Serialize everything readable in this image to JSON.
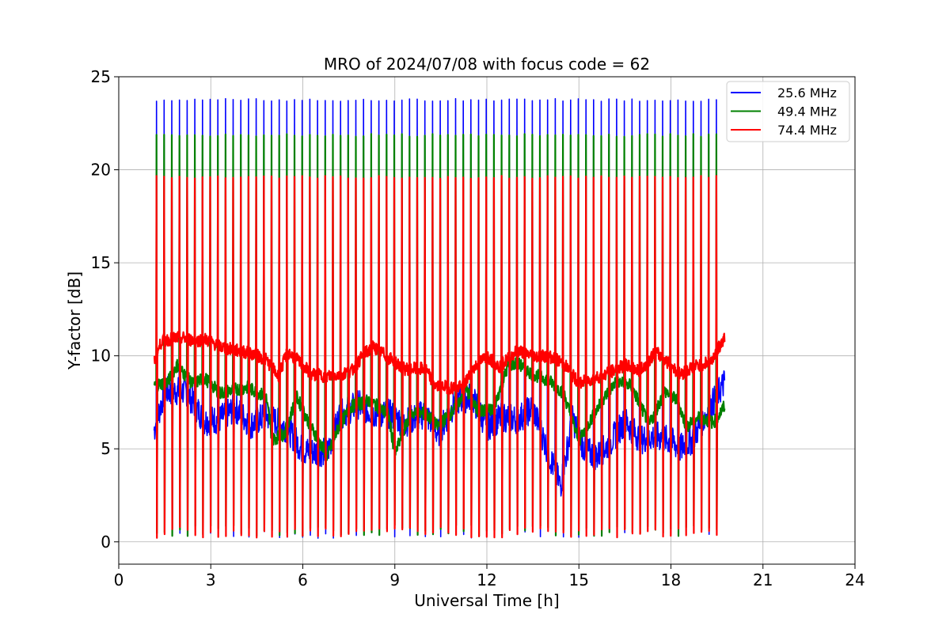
{
  "chart_data": {
    "type": "line",
    "title": "MRO of 2024/07/08 with focus code = 62",
    "xlabel": "Universal Time [h]",
    "ylabel": "Y-factor [dB]",
    "xlim": [
      0,
      24
    ],
    "ylim": [
      -1.2,
      25
    ],
    "xticks": [
      0,
      3,
      6,
      9,
      12,
      15,
      18,
      21,
      24
    ],
    "yticks": [
      0,
      5,
      10,
      15,
      20,
      25
    ],
    "grid": true,
    "legend_position": "top-right",
    "x_start": 1.15,
    "x_end": 19.75,
    "spike_start": 1.22,
    "spike_end": 19.55,
    "spike_period": 0.25,
    "series": [
      {
        "name": "25.6 MHz",
        "color": "#0000ff",
        "spike_peak": 23.75,
        "spike_low": 0.2,
        "baseline": [
          [
            1.15,
            6.0
          ],
          [
            1.5,
            8.1
          ],
          [
            2.2,
            8.1
          ],
          [
            2.8,
            6.5
          ],
          [
            3.3,
            6.6
          ],
          [
            3.8,
            7.2
          ],
          [
            4.3,
            6.3
          ],
          [
            4.8,
            6.8
          ],
          [
            5.5,
            6.1
          ],
          [
            6.0,
            4.9
          ],
          [
            6.8,
            4.8
          ],
          [
            7.2,
            6.8
          ],
          [
            7.8,
            7.4
          ],
          [
            8.3,
            6.9
          ],
          [
            8.8,
            6.9
          ],
          [
            9.3,
            6.4
          ],
          [
            10.0,
            6.9
          ],
          [
            10.4,
            5.8
          ],
          [
            11.0,
            7.6
          ],
          [
            11.5,
            7.8
          ],
          [
            12.0,
            6.2
          ],
          [
            12.5,
            6.7
          ],
          [
            13.0,
            6.6
          ],
          [
            13.5,
            7.2
          ],
          [
            14.0,
            4.8
          ],
          [
            14.4,
            3.0
          ],
          [
            14.8,
            6.6
          ],
          [
            15.2,
            4.9
          ],
          [
            15.6,
            4.6
          ],
          [
            16.0,
            5.3
          ],
          [
            16.5,
            6.5
          ],
          [
            17.0,
            5.5
          ],
          [
            17.5,
            5.7
          ],
          [
            18.0,
            5.4
          ],
          [
            18.3,
            5.0
          ],
          [
            18.7,
            5.5
          ],
          [
            19.2,
            7.0
          ],
          [
            19.75,
            8.6
          ]
        ]
      },
      {
        "name": "49.4 MHz",
        "color": "#008000",
        "spike_peak": 21.85,
        "spike_low": 0.3,
        "baseline": [
          [
            1.15,
            8.4
          ],
          [
            1.6,
            8.6
          ],
          [
            1.9,
            9.5
          ],
          [
            2.4,
            8.5
          ],
          [
            2.8,
            8.8
          ],
          [
            3.3,
            8.0
          ],
          [
            3.8,
            8.2
          ],
          [
            4.2,
            8.3
          ],
          [
            4.8,
            7.8
          ],
          [
            5.0,
            5.5
          ],
          [
            5.4,
            5.8
          ],
          [
            5.8,
            7.8
          ],
          [
            6.2,
            6.4
          ],
          [
            6.8,
            4.6
          ],
          [
            7.2,
            6.3
          ],
          [
            7.6,
            7.3
          ],
          [
            8.2,
            7.6
          ],
          [
            8.8,
            6.8
          ],
          [
            9.0,
            4.7
          ],
          [
            9.5,
            6.9
          ],
          [
            10.0,
            6.9
          ],
          [
            10.4,
            6.2
          ],
          [
            11.0,
            7.2
          ],
          [
            11.3,
            8.3
          ],
          [
            11.7,
            7.0
          ],
          [
            12.2,
            7.1
          ],
          [
            12.7,
            9.5
          ],
          [
            13.0,
            9.6
          ],
          [
            13.5,
            9.0
          ],
          [
            14.0,
            8.7
          ],
          [
            14.5,
            8.0
          ],
          [
            15.0,
            5.4
          ],
          [
            15.4,
            6.6
          ],
          [
            15.8,
            7.7
          ],
          [
            16.2,
            8.6
          ],
          [
            16.7,
            8.4
          ],
          [
            17.3,
            6.3
          ],
          [
            17.8,
            8.1
          ],
          [
            18.2,
            7.6
          ],
          [
            18.5,
            6.2
          ],
          [
            18.9,
            6.7
          ],
          [
            19.4,
            6.4
          ],
          [
            19.75,
            7.3
          ]
        ]
      },
      {
        "name": "74.4 MHz",
        "color": "#ff0000",
        "spike_peak": 19.6,
        "spike_low": 0.2,
        "baseline": [
          [
            1.15,
            9.7
          ],
          [
            1.4,
            10.8
          ],
          [
            2.0,
            11.0
          ],
          [
            2.5,
            10.8
          ],
          [
            2.8,
            10.9
          ],
          [
            3.3,
            10.5
          ],
          [
            3.8,
            10.3
          ],
          [
            4.4,
            10.1
          ],
          [
            4.8,
            9.8
          ],
          [
            5.2,
            8.9
          ],
          [
            5.5,
            10.2
          ],
          [
            5.8,
            9.8
          ],
          [
            6.3,
            9.0
          ],
          [
            6.8,
            8.9
          ],
          [
            7.2,
            9.0
          ],
          [
            7.6,
            9.2
          ],
          [
            8.0,
            10.1
          ],
          [
            8.3,
            10.5
          ],
          [
            8.8,
            9.9
          ],
          [
            9.3,
            9.3
          ],
          [
            10.0,
            9.3
          ],
          [
            10.3,
            8.4
          ],
          [
            10.8,
            8.3
          ],
          [
            11.2,
            8.3
          ],
          [
            11.6,
            9.4
          ],
          [
            12.0,
            10.0
          ],
          [
            12.4,
            9.4
          ],
          [
            13.0,
            10.3
          ],
          [
            13.5,
            10.0
          ],
          [
            14.0,
            10.0
          ],
          [
            14.5,
            9.6
          ],
          [
            15.0,
            8.5
          ],
          [
            15.5,
            8.8
          ],
          [
            16.0,
            9.1
          ],
          [
            16.5,
            9.5
          ],
          [
            17.0,
            9.2
          ],
          [
            17.5,
            10.2
          ],
          [
            18.0,
            9.5
          ],
          [
            18.3,
            9.0
          ],
          [
            18.7,
            9.4
          ],
          [
            19.3,
            9.7
          ],
          [
            19.75,
            11.0
          ]
        ]
      }
    ]
  }
}
